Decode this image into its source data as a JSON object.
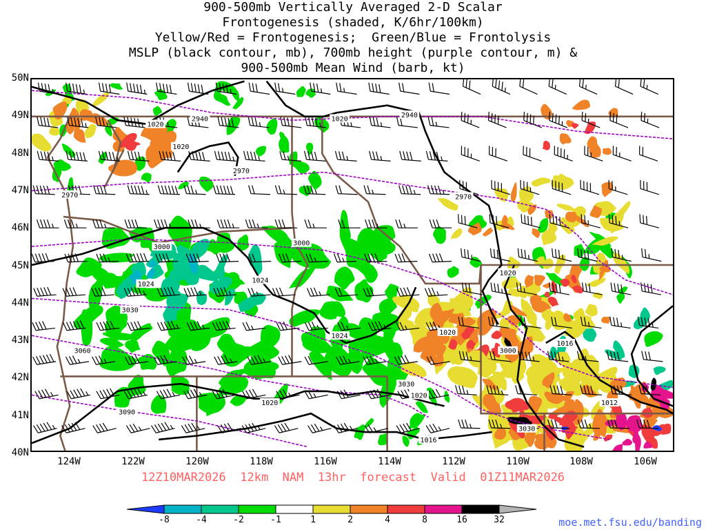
{
  "title": {
    "lines": [
      "900-500mb Vertically Averaged 2-D Scalar",
      "Frontogenesis (shaded, K/6hr/100km)",
      "Yellow/Red = Frontogenesis;  Green/Blue = Frontolysis",
      "MSLP (black contour, mb), 700mb height (purple contour, m) &",
      "900-500mb Mean Wind (barb, kt)"
    ]
  },
  "map": {
    "lat_labels": [
      "50N",
      "49N",
      "48N",
      "47N",
      "46N",
      "45N",
      "44N",
      "43N",
      "42N",
      "41N",
      "40N"
    ],
    "lon_labels": [
      "124W",
      "122W",
      "120W",
      "118W",
      "116W",
      "114W",
      "112W",
      "110W",
      "108W",
      "106W"
    ],
    "lat_range": [
      40,
      50
    ],
    "lon_range": [
      -125.2,
      -105.0
    ],
    "mslp_labels": [
      "1020",
      "1020",
      "1020",
      "1024",
      "1024",
      "1024",
      "1020",
      "1020",
      "1016",
      "1012",
      "1016",
      "1020",
      "1020"
    ],
    "height_labels": [
      "2940",
      "2940",
      "2970",
      "2970",
      "2970",
      "3000",
      "3000",
      "3000",
      "3030",
      "3030",
      "3060",
      "3090",
      "3030"
    ]
  },
  "footer": {
    "valid_text": "12Z10MAR2026  12km  NAM  13hr  forecast  Valid  01Z11MAR2026",
    "credit": "moe.met.fsu.edu/banding"
  },
  "colorbar": {
    "labels": [
      "-8",
      "-4",
      "-2",
      "-1",
      "1",
      "2",
      "4",
      "8",
      "16",
      "32"
    ],
    "colors": [
      "#1e3cff",
      "#00b4c8",
      "#00c88c",
      "#00dc00",
      "#ffffff",
      "#e6dc32",
      "#f08228",
      "#f03c3c",
      "#e6148c",
      "#000000",
      "#b4b4b4"
    ]
  },
  "colors": {
    "mslp_contour": "#000000",
    "height_contour": "#a000c8",
    "borders": "#7a5a48",
    "barbs": "#000000"
  }
}
